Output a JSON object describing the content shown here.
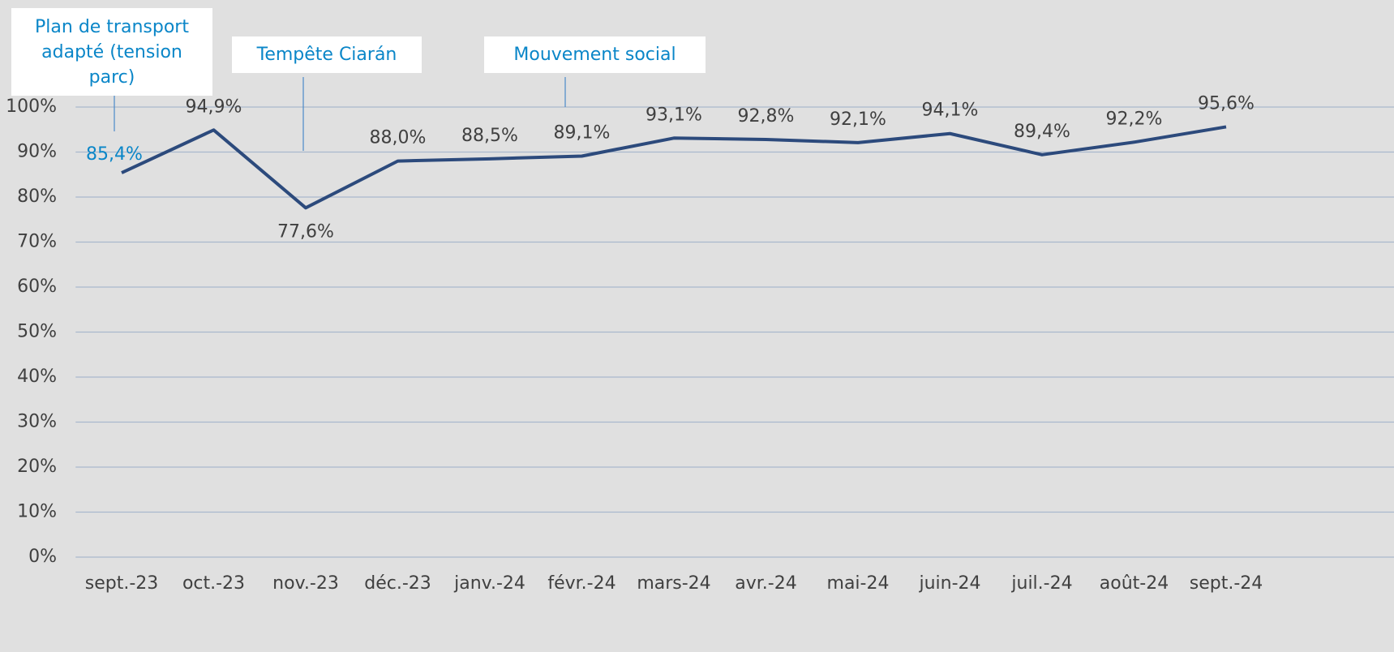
{
  "chart_data": {
    "type": "line",
    "categories": [
      "sept.-23",
      "oct.-23",
      "nov.-23",
      "déc.-23",
      "janv.-24",
      "févr.-24",
      "mars-24",
      "avr.-24",
      "mai-24",
      "juin-24",
      "juil.-24",
      "août-24",
      "sept.-24"
    ],
    "series": [
      {
        "color": "#2c4a7c",
        "values": [
          85.4,
          94.9,
          77.6,
          88.0,
          88.5,
          89.1,
          93.1,
          92.8,
          92.1,
          94.1,
          89.4,
          92.2,
          95.6
        ],
        "value_labels": [
          "85,4%",
          "94,9%",
          "77,6%",
          "88,0%",
          "88,5%",
          "89,1%",
          "93,1%",
          "92,8%",
          "92,1%",
          "94,1%",
          "89,4%",
          "92,2%",
          "95,6%"
        ]
      }
    ],
    "ylim": [
      0,
      100
    ],
    "yticks": [
      {
        "value": 0,
        "label": "0%"
      },
      {
        "value": 10,
        "label": "10%"
      },
      {
        "value": 20,
        "label": "20%"
      },
      {
        "value": 30,
        "label": "30%"
      },
      {
        "value": 40,
        "label": "40%"
      },
      {
        "value": 50,
        "label": "50%"
      },
      {
        "value": 60,
        "label": "60%"
      },
      {
        "value": 70,
        "label": "70%"
      },
      {
        "value": 80,
        "label": "80%"
      },
      {
        "value": 90,
        "label": "90%"
      },
      {
        "value": 100,
        "label": "100%"
      }
    ],
    "grid": true,
    "annotations": [
      {
        "text": "Plan de transport adapté (tension parc)"
      },
      {
        "text": "Tempête Ciarán"
      },
      {
        "text": "Mouvement social"
      }
    ]
  }
}
